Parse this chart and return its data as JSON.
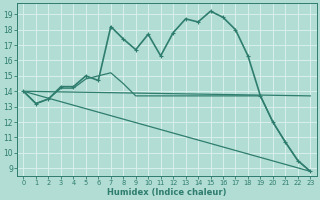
{
  "xlabel": "Humidex (Indice chaleur)",
  "xlim": [
    -0.5,
    23.5
  ],
  "ylim": [
    8.5,
    19.7
  ],
  "yticks": [
    9,
    10,
    11,
    12,
    13,
    14,
    15,
    16,
    17,
    18,
    19
  ],
  "xticks": [
    0,
    1,
    2,
    3,
    4,
    5,
    6,
    7,
    8,
    9,
    10,
    11,
    12,
    13,
    14,
    15,
    16,
    17,
    18,
    19,
    20,
    21,
    22,
    23
  ],
  "bg_color": "#b2ddd4",
  "line_color": "#2e7d6e",
  "grid_color": "#d9f0eb",
  "lines": [
    {
      "x": [
        0,
        1,
        2,
        3,
        4,
        5,
        6,
        7,
        8,
        9,
        10,
        11,
        12,
        13,
        14,
        15,
        16,
        17,
        18,
        19,
        20,
        21,
        22,
        23
      ],
      "y": [
        14.0,
        13.2,
        13.5,
        14.3,
        14.3,
        15.0,
        14.7,
        18.2,
        17.4,
        16.7,
        17.7,
        16.3,
        17.8,
        18.7,
        18.5,
        19.2,
        18.8,
        18.0,
        16.3,
        13.7,
        12.0,
        10.7,
        9.5,
        8.8
      ],
      "marker": true,
      "lw": 1.2
    },
    {
      "x": [
        0,
        1,
        2,
        3,
        4,
        5,
        6,
        7,
        8,
        9,
        10,
        11,
        12,
        13,
        14,
        15,
        16,
        17,
        18,
        19,
        20,
        21,
        22,
        23
      ],
      "y": [
        14.0,
        13.2,
        13.5,
        14.2,
        14.2,
        14.8,
        15.0,
        15.2,
        14.5,
        13.7,
        13.7,
        13.7,
        13.7,
        13.7,
        13.7,
        13.7,
        13.7,
        13.7,
        13.7,
        13.7,
        12.0,
        10.7,
        9.5,
        8.8
      ],
      "marker": false,
      "lw": 0.9
    },
    {
      "x": [
        0,
        23
      ],
      "y": [
        14.0,
        8.8
      ],
      "marker": false,
      "lw": 0.9
    },
    {
      "x": [
        0,
        23
      ],
      "y": [
        14.0,
        13.7
      ],
      "marker": false,
      "lw": 0.9
    }
  ]
}
